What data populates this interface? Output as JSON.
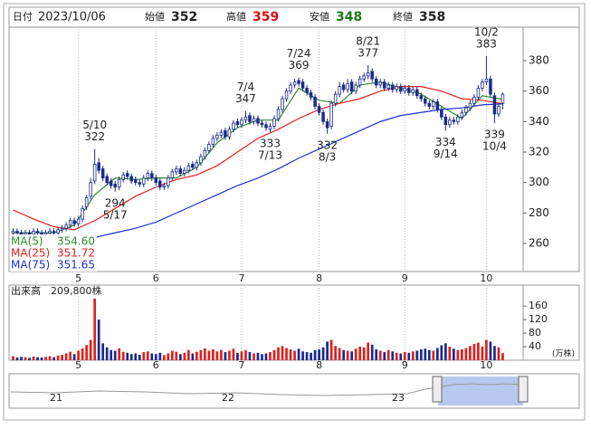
{
  "chart_data": {
    "type": "candlestick",
    "header": {
      "date_label": "日付",
      "date": "2023/10/06",
      "open_label": "始値",
      "high_label": "高値",
      "low_label": "安値",
      "close_label": "終値"
    },
    "xlim": [
      -1,
      125
    ],
    "xticks": [
      {
        "value": 16,
        "label": "5"
      },
      {
        "value": 35,
        "label": "6"
      },
      {
        "value": 56,
        "label": "7"
      },
      {
        "value": 75,
        "label": "8"
      },
      {
        "value": 96,
        "label": "9"
      },
      {
        "value": 116,
        "label": "10"
      }
    ],
    "ylim": [
      241.6,
      402
    ],
    "yticks": [
      260,
      280,
      300,
      320,
      340,
      360,
      380
    ],
    "up_color": "#ffffff",
    "down_color": "#1c2a8c",
    "outline_color": "#1c2a8c",
    "open": [
      267,
      268,
      267,
      266,
      267,
      266,
      268,
      267,
      266,
      267,
      268,
      267,
      269,
      270,
      272,
      275,
      273,
      276,
      284,
      291,
      301,
      313,
      309,
      304,
      301,
      299,
      297,
      302,
      306,
      304,
      302,
      300,
      299,
      303,
      306,
      303,
      301,
      297,
      298,
      303,
      307,
      309,
      306,
      308,
      312,
      310,
      313,
      317,
      321,
      325,
      329,
      331,
      334,
      330,
      335,
      340,
      338,
      341,
      344,
      340,
      342,
      339,
      338,
      335,
      337,
      342,
      348,
      355,
      360,
      364,
      367,
      366,
      362,
      359,
      356,
      350,
      346,
      340,
      337,
      352,
      358,
      364,
      361,
      366,
      360,
      364,
      368,
      370,
      373,
      368,
      364,
      366,
      362,
      364,
      361,
      363,
      360,
      362,
      359,
      361,
      357,
      355,
      352,
      350,
      353,
      348,
      343,
      338,
      341,
      340,
      343,
      346,
      349,
      352,
      356,
      362,
      366,
      368,
      357,
      345,
      352
    ],
    "high": [
      270,
      270,
      269,
      269,
      269,
      270,
      270,
      269,
      269,
      270,
      270,
      271,
      272,
      274,
      277,
      277,
      278,
      285,
      292,
      303,
      322,
      316,
      311,
      306,
      303,
      301,
      304,
      307,
      308,
      306,
      304,
      302,
      305,
      308,
      308,
      305,
      303,
      300,
      305,
      309,
      311,
      311,
      310,
      313,
      314,
      315,
      319,
      323,
      327,
      331,
      333,
      335,
      336,
      337,
      341,
      342,
      343,
      347,
      346,
      344,
      344,
      341,
      340,
      339,
      344,
      350,
      357,
      362,
      366,
      368,
      369,
      368,
      364,
      361,
      358,
      352,
      348,
      342,
      354,
      360,
      366,
      366,
      368,
      368,
      366,
      370,
      372,
      377,
      375,
      370,
      368,
      368,
      366,
      366,
      365,
      365,
      364,
      364,
      363,
      363,
      359,
      357,
      354,
      355,
      355,
      350,
      345,
      343,
      343,
      345,
      348,
      351,
      354,
      358,
      364,
      368,
      383,
      370,
      359,
      352,
      359
    ],
    "low": [
      265,
      265,
      264,
      264,
      264,
      264,
      265,
      264,
      264,
      265,
      265,
      265,
      267,
      268,
      270,
      271,
      271,
      274,
      282,
      289,
      299,
      306,
      301,
      298,
      296,
      294,
      295,
      300,
      302,
      299,
      298,
      297,
      297,
      301,
      301,
      298,
      295,
      295,
      296,
      301,
      305,
      304,
      304,
      306,
      308,
      308,
      311,
      315,
      319,
      323,
      327,
      329,
      328,
      328,
      333,
      336,
      336,
      339,
      338,
      338,
      337,
      336,
      334,
      333,
      335,
      340,
      346,
      353,
      358,
      362,
      363,
      360,
      357,
      354,
      348,
      344,
      338,
      332,
      335,
      350,
      356,
      359,
      359,
      358,
      358,
      362,
      366,
      368,
      366,
      362,
      362,
      360,
      360,
      359,
      359,
      358,
      358,
      357,
      357,
      355,
      353,
      350,
      348,
      348,
      346,
      341,
      334,
      336,
      338,
      338,
      341,
      344,
      347,
      350,
      354,
      360,
      364,
      356,
      339,
      343,
      348
    ],
    "close": [
      268,
      267,
      266,
      267,
      266,
      268,
      267,
      266,
      267,
      268,
      267,
      269,
      270,
      272,
      275,
      273,
      276,
      283,
      290,
      300,
      312,
      308,
      303,
      300,
      298,
      297,
      302,
      305,
      304,
      301,
      300,
      299,
      303,
      306,
      303,
      300,
      297,
      298,
      303,
      307,
      309,
      306,
      308,
      311,
      310,
      313,
      317,
      321,
      325,
      329,
      331,
      333,
      330,
      335,
      339,
      338,
      341,
      343,
      340,
      342,
      339,
      338,
      336,
      337,
      342,
      348,
      355,
      360,
      364,
      366,
      365,
      362,
      359,
      356,
      350,
      346,
      340,
      336,
      352,
      358,
      363,
      361,
      365,
      360,
      364,
      368,
      370,
      372,
      368,
      364,
      366,
      362,
      364,
      361,
      363,
      360,
      362,
      359,
      361,
      357,
      355,
      352,
      350,
      353,
      348,
      343,
      338,
      341,
      340,
      343,
      346,
      349,
      352,
      356,
      362,
      366,
      368,
      358,
      345,
      350,
      358
    ],
    "ma_series": [
      {
        "name": "MA(5)",
        "color": "#2e8b2e",
        "value_label": "354.60",
        "x": [
          0,
          5,
          10,
          15,
          20,
          25,
          30,
          35,
          40,
          45,
          50,
          55,
          60,
          65,
          70,
          75,
          80,
          85,
          90,
          95,
          100,
          105,
          110,
          115,
          120
        ],
        "values": [
          267,
          267,
          267,
          272,
          292,
          303,
          302,
          303,
          303,
          310,
          326,
          336,
          341,
          341,
          362,
          354,
          352,
          364,
          366,
          362,
          358,
          350,
          342,
          357,
          354.6
        ]
      },
      {
        "name": "MA(25)",
        "color": "#e0201c",
        "value_label": "351.72",
        "x": [
          0,
          5,
          10,
          15,
          20,
          25,
          30,
          35,
          40,
          45,
          50,
          55,
          60,
          65,
          70,
          75,
          80,
          85,
          90,
          95,
          100,
          105,
          110,
          115,
          120
        ],
        "values": [
          282,
          276,
          271,
          269,
          275,
          283,
          291,
          297,
          302,
          305,
          311,
          320,
          329,
          335,
          342,
          348,
          352,
          355,
          360,
          363,
          363,
          360,
          355,
          354,
          351.72
        ]
      },
      {
        "name": "MA(75)",
        "color": "#1f2fd6",
        "value_label": "351.65",
        "x": [
          20,
          25,
          30,
          35,
          40,
          45,
          50,
          55,
          60,
          65,
          70,
          75,
          80,
          85,
          90,
          95,
          100,
          105,
          110,
          115,
          120
        ],
        "values": [
          264,
          267,
          270,
          274,
          280,
          286,
          292,
          298,
          303,
          309,
          316,
          322,
          328,
          334,
          340,
          344,
          346,
          348,
          349,
          351,
          351.65
        ]
      }
    ],
    "annotations": [
      {
        "x": 20,
        "date": "5/10",
        "value": 322,
        "position": "above"
      },
      {
        "x": 25,
        "date": "5/17",
        "value": 294,
        "position": "below"
      },
      {
        "x": 57,
        "date": "7/4",
        "value": 347,
        "position": "above"
      },
      {
        "x": 63,
        "date": "7/13",
        "value": 333,
        "position": "below"
      },
      {
        "x": 70,
        "date": "7/24",
        "value": 369,
        "position": "above"
      },
      {
        "x": 77,
        "date": "8/3",
        "value": 332,
        "position": "below"
      },
      {
        "x": 87,
        "date": "8/21",
        "value": 377,
        "position": "above"
      },
      {
        "x": 106,
        "date": "9/14",
        "value": 334,
        "position": "below"
      },
      {
        "x": 116,
        "date": "10/2",
        "value": 383,
        "position": "above"
      },
      {
        "x": 118,
        "date": "10/4",
        "value": 339,
        "position": "below"
      }
    ],
    "volume": {
      "title": "出来高",
      "last_label": "209,800株",
      "unit": "(万株)",
      "up_color": "#e0201c",
      "down_color": "#1c2a8c",
      "ylim": [
        0,
        222
      ],
      "yticks": [
        40,
        80,
        120,
        160
      ],
      "values": [
        12,
        8,
        10,
        9,
        7,
        11,
        9,
        8,
        10,
        12,
        9,
        14,
        16,
        20,
        25,
        18,
        28,
        35,
        45,
        60,
        182,
        120,
        50,
        38,
        30,
        28,
        35,
        25,
        22,
        18,
        20,
        16,
        24,
        26,
        20,
        18,
        22,
        15,
        20,
        28,
        25,
        18,
        22,
        30,
        20,
        25,
        30,
        35,
        28,
        32,
        26,
        30,
        24,
        28,
        34,
        22,
        26,
        30,
        24,
        20,
        22,
        18,
        20,
        24,
        30,
        38,
        42,
        36,
        32,
        28,
        34,
        26,
        24,
        22,
        30,
        32,
        38,
        55,
        60,
        42,
        36,
        30,
        28,
        26,
        34,
        40,
        38,
        52,
        46,
        32,
        28,
        24,
        30,
        26,
        22,
        20,
        24,
        22,
        26,
        28,
        32,
        34,
        30,
        28,
        36,
        44,
        50,
        40,
        34,
        30,
        32,
        36,
        42,
        48,
        52,
        40,
        60,
        55,
        42,
        38,
        20.98
      ]
    },
    "navigator_labels": [
      "21",
      "22",
      "23"
    ]
  }
}
